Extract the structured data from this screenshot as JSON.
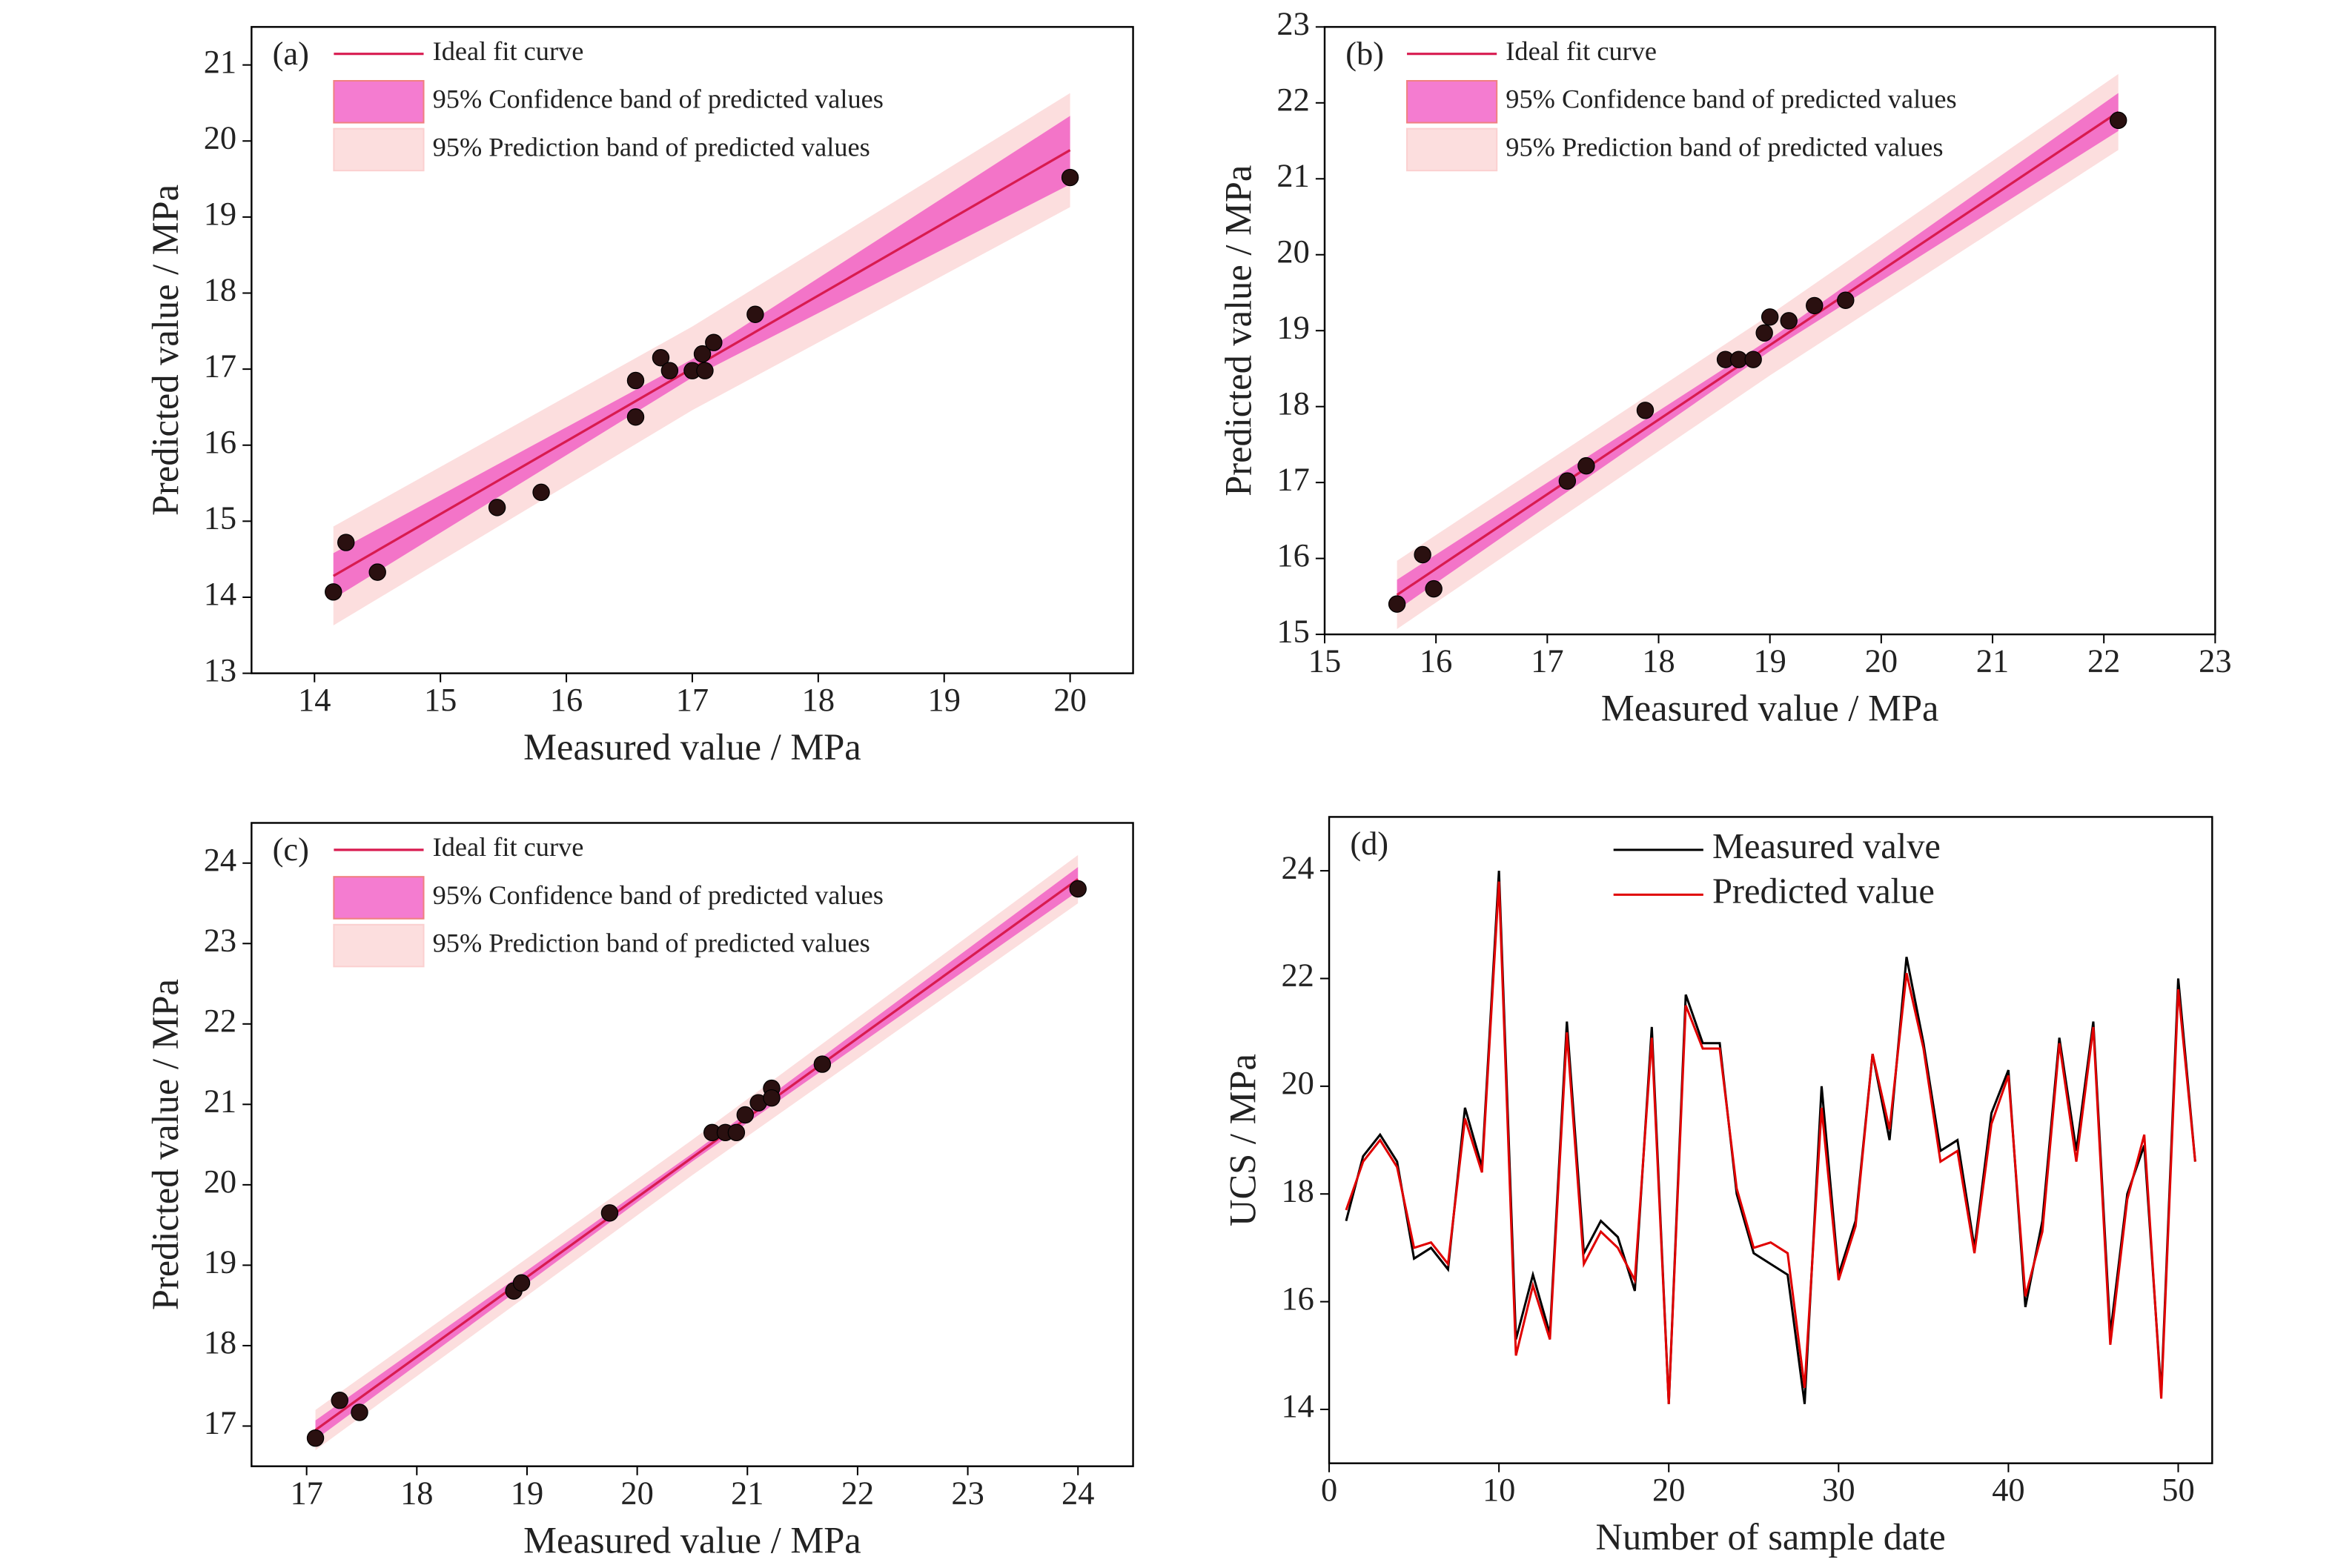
{
  "chart_data": [
    {
      "type": "scatter",
      "label": "(a)",
      "x_label": "Measured value / MPa",
      "y_label": "Predicted value / MPa",
      "x": [
        14.15,
        14.25,
        14.5,
        15.45,
        15.8,
        16.55,
        16.55,
        16.75,
        16.82,
        17.0,
        17.08,
        17.1,
        17.17,
        17.5,
        20.0
      ],
      "y": [
        14.07,
        14.72,
        14.33,
        15.18,
        15.38,
        16.85,
        16.37,
        17.15,
        16.98,
        16.98,
        17.2,
        16.98,
        17.35,
        17.72,
        19.52
      ],
      "point_color": "#2a1010",
      "fit": {
        "name": "Ideal fit curve",
        "color": "#d81b50",
        "x": [
          14.15,
          17,
          20
        ],
        "y": [
          14.28,
          17.01,
          19.88
        ]
      },
      "confidence_band": {
        "name": "95% Confidence band of predicted values",
        "color": "#f050c0",
        "lower": [
          13.98,
          16.89,
          19.43
        ],
        "upper": [
          14.58,
          17.13,
          20.33
        ]
      },
      "prediction_band": {
        "name": "95% Prediction band of predicted values",
        "color": "#fcdede",
        "lower": [
          13.63,
          16.46,
          19.13
        ],
        "upper": [
          14.93,
          17.56,
          20.63
        ]
      },
      "xlim": [
        13.5,
        20.5
      ],
      "ylim": [
        13,
        21.5
      ],
      "xticks": [
        14,
        15,
        16,
        17,
        18,
        19,
        20
      ],
      "yticks": [
        13,
        14,
        15,
        16,
        17,
        18,
        19,
        20,
        21
      ]
    },
    {
      "type": "scatter",
      "label": "(b)",
      "x_label": "Measured value / MPa",
      "y_label": "Predicted value / MPa",
      "x": [
        15.65,
        15.88,
        15.98,
        17.18,
        17.35,
        17.88,
        18.6,
        18.72,
        18.85,
        18.95,
        19.0,
        19.17,
        19.4,
        19.68,
        22.13
      ],
      "y": [
        15.4,
        16.05,
        15.6,
        17.02,
        17.22,
        17.95,
        18.62,
        18.62,
        18.62,
        18.97,
        19.18,
        19.13,
        19.33,
        19.4,
        21.77
      ],
      "point_color": "#2a1010",
      "fit": {
        "name": "Ideal fit curve",
        "color": "#d81b50",
        "x": [
          15.65,
          19,
          22.13
        ],
        "y": [
          15.52,
          18.81,
          21.88
        ]
      },
      "confidence_band": {
        "name": "95% Confidence band of predicted values",
        "color": "#f050c0",
        "lower": [
          15.32,
          18.73,
          21.63
        ],
        "upper": [
          15.72,
          18.89,
          22.13
        ]
      },
      "prediction_band": {
        "name": "95% Prediction band of predicted values",
        "color": "#fcdede",
        "lower": [
          15.07,
          18.41,
          21.38
        ],
        "upper": [
          15.97,
          19.21,
          22.38
        ]
      },
      "xlim": [
        15,
        23
      ],
      "ylim": [
        15,
        23
      ],
      "xticks": [
        15,
        16,
        17,
        18,
        19,
        20,
        21,
        22,
        23
      ],
      "yticks": [
        15,
        16,
        17,
        18,
        19,
        20,
        21,
        22,
        23
      ]
    },
    {
      "type": "scatter",
      "label": "(c)",
      "x_label": "Measured value / MPa",
      "y_label": "Predicted value / MPa",
      "x": [
        17.08,
        17.3,
        17.48,
        18.88,
        18.95,
        19.75,
        20.68,
        20.8,
        20.9,
        20.98,
        21.1,
        21.22,
        21.22,
        21.68,
        24.0
      ],
      "y": [
        16.85,
        17.32,
        17.17,
        18.68,
        18.78,
        19.65,
        20.65,
        20.65,
        20.65,
        20.87,
        21.02,
        21.2,
        21.08,
        21.5,
        23.68
      ],
      "point_color": "#2a1010",
      "fit": {
        "name": "Ideal fit curve",
        "color": "#d81b50",
        "x": [
          17.08,
          20.5,
          24
        ],
        "y": [
          16.95,
          20.34,
          23.8
        ]
      },
      "confidence_band": {
        "name": "95% Confidence band of predicted values",
        "color": "#f050c0",
        "lower": [
          16.83,
          20.29,
          23.65
        ],
        "upper": [
          17.07,
          20.39,
          23.95
        ]
      },
      "prediction_band": {
        "name": "95% Prediction band of predicted values",
        "color": "#fcdede",
        "lower": [
          16.7,
          20.12,
          23.5
        ],
        "upper": [
          17.2,
          20.56,
          24.1
        ]
      },
      "xlim": [
        16.5,
        24.5
      ],
      "ylim": [
        16.5,
        24.5
      ],
      "xticks": [
        17,
        18,
        19,
        20,
        21,
        22,
        23,
        24
      ],
      "yticks": [
        17,
        18,
        19,
        20,
        21,
        22,
        23,
        24
      ]
    },
    {
      "type": "line",
      "label": "(d)",
      "x_label": "Number of sample date",
      "y_label": "UCS / MPa",
      "x": [
        1,
        2,
        3,
        4,
        5,
        6,
        7,
        8,
        9,
        10,
        11,
        12,
        13,
        14,
        15,
        16,
        17,
        18,
        19,
        20,
        21,
        22,
        23,
        24,
        25,
        26,
        27,
        28,
        29,
        30,
        31,
        32,
        33,
        34,
        35,
        36,
        37,
        38,
        39,
        40,
        41,
        42,
        43,
        44,
        45,
        46,
        47,
        48,
        49,
        50,
        51
      ],
      "series": [
        {
          "name": "Measured valve",
          "color": "#000000",
          "values": [
            17.5,
            18.7,
            19.1,
            18.6,
            16.8,
            17.0,
            16.6,
            19.6,
            18.5,
            24.0,
            15.3,
            16.5,
            15.4,
            21.2,
            16.9,
            17.5,
            17.2,
            16.2,
            21.1,
            14.1,
            21.7,
            20.8,
            20.8,
            18.0,
            16.9,
            16.7,
            16.5,
            14.1,
            20.0,
            16.5,
            17.5,
            20.6,
            19.0,
            22.4,
            20.8,
            18.8,
            19.0,
            17.0,
            19.5,
            20.3,
            15.9,
            17.5,
            20.9,
            18.8,
            21.2,
            15.4,
            18.0,
            18.9,
            14.3,
            22.0,
            18.6
          ]
        },
        {
          "name": "Predicted value",
          "color": "#e00000",
          "values": [
            17.7,
            18.6,
            19.0,
            18.5,
            17.0,
            17.1,
            16.7,
            19.4,
            18.4,
            23.8,
            15.0,
            16.3,
            15.3,
            21.0,
            16.7,
            17.3,
            17.0,
            16.4,
            20.9,
            14.1,
            21.5,
            20.7,
            20.7,
            18.1,
            17.0,
            17.1,
            16.9,
            14.4,
            19.6,
            16.4,
            17.4,
            20.6,
            19.2,
            22.1,
            20.7,
            18.6,
            18.8,
            16.9,
            19.3,
            20.2,
            16.1,
            17.3,
            20.8,
            18.6,
            21.1,
            15.2,
            17.9,
            19.1,
            14.2,
            21.8,
            18.6
          ]
        }
      ],
      "xlim": [
        0,
        52
      ],
      "ylim": [
        13,
        25
      ],
      "xticks": [
        0,
        10,
        20,
        30,
        40,
        50
      ],
      "yticks": [
        14,
        16,
        18,
        20,
        22,
        24
      ]
    }
  ]
}
